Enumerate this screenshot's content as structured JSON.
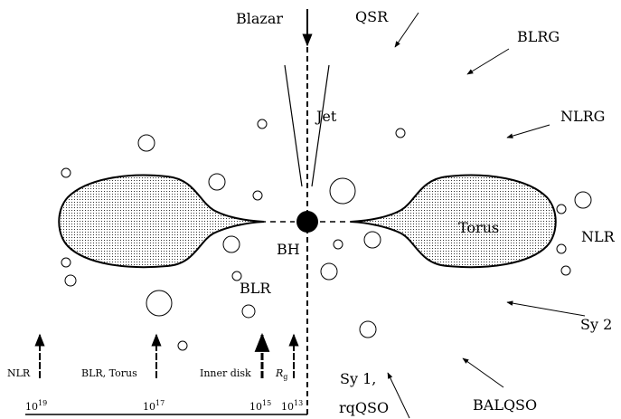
{
  "diagram": {
    "labels": {
      "blazar": "Blazar",
      "qsr": "QSR",
      "blrg": "BLRG",
      "nlrg": "NLRG",
      "jet": "Jet",
      "bh": "BH",
      "torus": "Torus",
      "nlr": "NLR",
      "blr": "BLR",
      "sy2": "Sy 2",
      "sy1": "Sy 1,",
      "rqqso": "rqQSO",
      "balqso": "BALQSO"
    },
    "scale": {
      "markers": [
        {
          "label": "NLR"
        },
        {
          "label": "BLR, Torus"
        },
        {
          "label": "Inner disk"
        }
      ],
      "rg_symbol": "R",
      "rg_subscript": "g",
      "tick_base": "10",
      "ticks": [
        {
          "exponent": "19"
        },
        {
          "exponent": "17"
        },
        {
          "exponent": "15"
        },
        {
          "exponent": "13"
        }
      ]
    }
  }
}
